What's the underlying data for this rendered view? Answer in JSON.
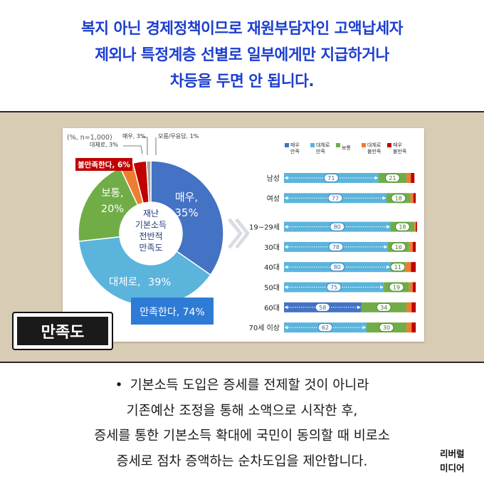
{
  "headline": {
    "lines": [
      "복지 아닌 경제정책이므로 재원부담자인 고액납세자",
      "제외나 특정계층 선별로 일부에게만 지급하거나",
      "차등을 두면 안 됩니다."
    ]
  },
  "colors": {
    "headline": "#1c3ecf",
    "band": "#d9ccb4",
    "very_satisfied": "#4472c4",
    "somewhat_satisfied": "#5bb4dc",
    "neutral": "#70ad47",
    "somewhat_dissatisfied": "#ed7d31",
    "very_dissatisfied": "#c00000",
    "satisfied_box": "#2e7bd6",
    "dissatisfied_box": "#c00000"
  },
  "tag_label": "만족도",
  "chart_data": [
    {
      "type": "pie",
      "note": "(%, n=1,000)",
      "center_label_lines": [
        "재난",
        "기본소득",
        "전반적",
        "만족도"
      ],
      "slices": [
        {
          "label": "매우,",
          "value": 35,
          "value_text": "35%",
          "color": "#4472c4"
        },
        {
          "label": "대체로,",
          "value": 39,
          "value_text": "39%",
          "color": "#5bb4dc"
        },
        {
          "label": "보통,",
          "value": 20,
          "value_text": "20%",
          "color": "#70ad47"
        },
        {
          "label": "대체로, 3%",
          "value": 3,
          "color": "#ed7d31"
        },
        {
          "label": "매우, 3%",
          "value": 3,
          "color": "#c00000"
        },
        {
          "label": "모름/무응답, 1%",
          "value": 1,
          "color": "#a6a6a6"
        }
      ],
      "summary_boxes": {
        "satisfied": "만족한다, 74%",
        "dissatisfied": "불만족한다, 6%"
      }
    },
    {
      "type": "bar",
      "stacked": true,
      "orientation": "horizontal",
      "legend": [
        "매우 만족",
        "대체로 만족",
        "보통",
        "대체로 불만족",
        "매우 불만족"
      ],
      "legend_display": [
        [
          "매우",
          "만족"
        ],
        [
          "대체로",
          "만족"
        ],
        [
          "보통"
        ],
        [
          "대체로",
          "불만족"
        ],
        [
          "매우",
          "불만족"
        ]
      ],
      "legend_colors": [
        "#4472c4",
        "#5bb4dc",
        "#70ad47",
        "#ed7d31",
        "#c00000"
      ],
      "satisfied_colors": [
        "#5bb4dc",
        "#5bb4dc",
        "#5bb4dc",
        "#5bb4dc",
        "#5bb4dc",
        "#5bb4dc",
        "#4472c4",
        "#5bb4dc"
      ],
      "neutral_color": "#70ad47",
      "categories": [
        "남성",
        "여성",
        "19~29세",
        "30대",
        "40대",
        "50대",
        "60대",
        "70세 이상"
      ],
      "satisfied": [
        71,
        77,
        80,
        78,
        80,
        75,
        58,
        62
      ],
      "neutral": [
        21,
        18,
        18,
        16,
        11,
        19,
        34,
        30
      ],
      "dissatisfied": [
        6,
        4,
        2,
        5,
        8,
        5,
        7,
        7
      ],
      "group_gap_after": [
        1
      ]
    }
  ],
  "body": {
    "bullet": "•",
    "lines": [
      "기본소득 도입은 증세를 전제할 것이 아니라",
      "기존예산 조정을 통해 소액으로 시작한 후,",
      "증세를 통한 기본소득 확대에 국민이 동의할 때 비로소",
      "증세로 점차 증액하는 순차도입을 제안합니다."
    ]
  },
  "logo": [
    "리버럴",
    "미디어"
  ]
}
